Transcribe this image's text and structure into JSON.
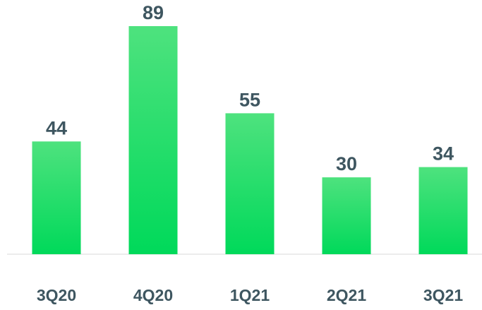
{
  "chart_data": {
    "type": "bar",
    "categories": [
      "3Q20",
      "4Q20",
      "1Q21",
      "2Q21",
      "3Q21"
    ],
    "values": [
      44,
      89,
      55,
      30,
      34
    ],
    "data_labels": [
      "44",
      "89",
      "55",
      "30",
      "34"
    ],
    "title": "",
    "xlabel": "",
    "ylabel": "",
    "ylim": [
      0,
      89
    ],
    "grid": false,
    "legend": "none",
    "colors": {
      "bar_top": "#4ee27e",
      "bar_bottom": "#00d95a",
      "label_text": "#3e5660",
      "baseline": "#d9d9d9"
    }
  }
}
